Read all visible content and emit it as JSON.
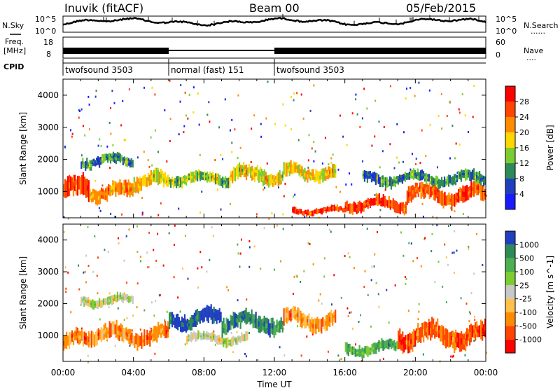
{
  "header": {
    "station": "Inuvik (fitACF)",
    "beam": "Beam 00",
    "date": "05/Feb/2015"
  },
  "nsky_panel": {
    "left_label": "N.Sky",
    "right_label": "N.Search",
    "right_dots": "......",
    "left_ticks": [
      "10^5",
      "10^0"
    ],
    "right_ticks": [
      "10^5",
      "10^0"
    ]
  },
  "freq_panel": {
    "label_top": "Freq.",
    "label_bottom": "[MHz]",
    "left_ticks": [
      "18",
      "8"
    ],
    "right_label": "Nave",
    "right_dots": "....",
    "right_ticks": [
      "60",
      "0"
    ]
  },
  "cpid": {
    "label": "CPID",
    "segments": [
      {
        "text": "twofsound 3503",
        "start_hour": 0,
        "end_hour": 6
      },
      {
        "text": "normal (fast) 151",
        "start_hour": 6,
        "end_hour": 12
      },
      {
        "text": "twofsound 3503",
        "start_hour": 12,
        "end_hour": 24
      }
    ]
  },
  "x_axis": {
    "title": "Time UT",
    "ticks": [
      "00:00",
      "04:00",
      "08:00",
      "12:00",
      "16:00",
      "20:00",
      "00:00"
    ]
  },
  "chart_data": [
    {
      "type": "heatmap",
      "ylabel": "Slant Range [km]",
      "xlabel": "Time UT",
      "xlim_hours": [
        0,
        24
      ],
      "ylim": [
        180,
        4500
      ],
      "yticks": [
        1000,
        2000,
        3000,
        4000
      ],
      "colorbar": {
        "label": "Power [dB]",
        "tick_labels": [
          "4",
          "8",
          "12",
          "16",
          "20",
          "24",
          "28"
        ],
        "colors": [
          "#1a1aff",
          "#1f3fbf",
          "#2e8b57",
          "#7ccd32",
          "#ffd700",
          "#ff8c00",
          "#ff4500",
          "#ff0000"
        ]
      },
      "bands": [
        {
          "start_hour": 0.0,
          "end_hour": 1.5,
          "center_km": 1000,
          "width_km": 650,
          "level": 6
        },
        {
          "start_hour": 1.5,
          "end_hour": 4.0,
          "center_km": 1000,
          "width_km": 450,
          "level": 5
        },
        {
          "start_hour": 1.0,
          "end_hour": 4.0,
          "center_km": 1950,
          "width_km": 320,
          "level": 2
        },
        {
          "start_hour": 4.0,
          "end_hour": 6.0,
          "center_km": 1300,
          "width_km": 450,
          "level": 4
        },
        {
          "start_hour": 6.0,
          "end_hour": 9.5,
          "center_km": 1400,
          "width_km": 350,
          "level": 3
        },
        {
          "start_hour": 9.5,
          "end_hour": 12.5,
          "center_km": 1500,
          "width_km": 450,
          "level": 4
        },
        {
          "start_hour": 12.5,
          "end_hour": 15.5,
          "center_km": 1600,
          "width_km": 400,
          "level": 4
        },
        {
          "start_hour": 13.0,
          "end_hour": 16.0,
          "center_km": 400,
          "width_km": 200,
          "level": 6
        },
        {
          "start_hour": 16.0,
          "end_hour": 19.5,
          "center_km": 600,
          "width_km": 350,
          "level": 6
        },
        {
          "start_hour": 19.5,
          "end_hour": 24.0,
          "center_km": 900,
          "width_km": 500,
          "level": 6
        },
        {
          "start_hour": 17.0,
          "end_hour": 24.0,
          "center_km": 1400,
          "width_km": 350,
          "level": 2
        }
      ]
    },
    {
      "type": "heatmap",
      "ylabel": "Slant Range [km]",
      "xlabel": "Time UT",
      "xlim_hours": [
        0,
        24
      ],
      "ylim": [
        180,
        4500
      ],
      "yticks": [
        1000,
        2000,
        3000,
        4000
      ],
      "colorbar": {
        "label": "Velocity [m s^-1]",
        "tick_labels": [
          "1000",
          "500",
          "100",
          "25",
          "-25",
          "-100",
          "-500",
          "-1000"
        ],
        "colors": [
          "#1f3fbf",
          "#2e8b57",
          "#4caf50",
          "#7ccd32",
          "#c8c8c8",
          "#ffc04c",
          "#ff8c00",
          "#ff4500",
          "#ff0000"
        ]
      },
      "bands": [
        {
          "start_hour": 0.0,
          "end_hour": 1.5,
          "center_km": 800,
          "width_km": 500,
          "level": 6
        },
        {
          "start_hour": 1.0,
          "end_hour": 4.0,
          "center_km": 2100,
          "width_km": 300,
          "level": 4
        },
        {
          "start_hour": 1.5,
          "end_hour": 6.0,
          "center_km": 1000,
          "width_km": 500,
          "level": 6
        },
        {
          "start_hour": 6.0,
          "end_hour": 9.0,
          "center_km": 1500,
          "width_km": 500,
          "level": 0
        },
        {
          "start_hour": 7.0,
          "end_hour": 10.5,
          "center_km": 900,
          "width_km": 300,
          "level": 4
        },
        {
          "start_hour": 9.0,
          "end_hour": 12.5,
          "center_km": 1400,
          "width_km": 500,
          "level": 1
        },
        {
          "start_hour": 12.5,
          "end_hour": 15.5,
          "center_km": 1500,
          "width_km": 500,
          "level": 6
        },
        {
          "start_hour": 16.0,
          "end_hour": 19.0,
          "center_km": 600,
          "width_km": 350,
          "level": 2
        },
        {
          "start_hour": 19.0,
          "end_hour": 24.0,
          "center_km": 1000,
          "width_km": 600,
          "level": 7
        }
      ]
    }
  ]
}
